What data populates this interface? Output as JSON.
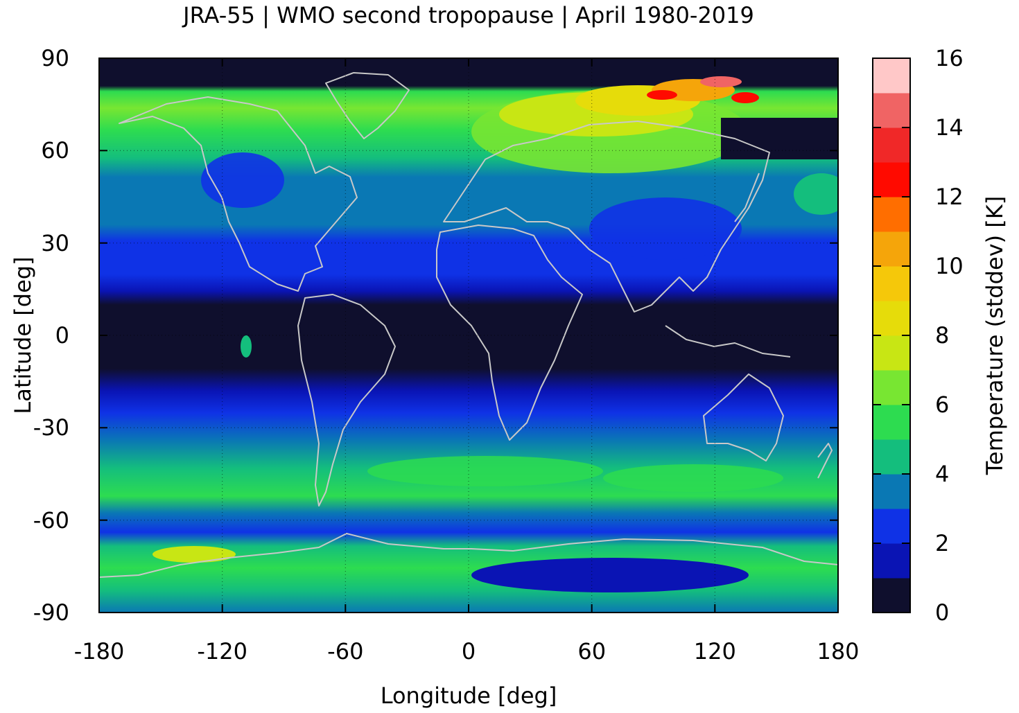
{
  "title": "JRA-55 | WMO second tropopause | April 1980-2019",
  "map": {
    "xlabel": "Longitude [deg]",
    "ylabel": "Latitude [deg]",
    "xlim": [
      -180,
      180
    ],
    "ylim": [
      -90,
      90
    ],
    "xticks": [
      "-180",
      "-120",
      "-60",
      "0",
      "60",
      "120",
      "180"
    ],
    "yticks": [
      "90",
      "60",
      "30",
      "0",
      "-30",
      "-60",
      "-90"
    ],
    "grid": true,
    "coastline_color": "#c8c8c8"
  },
  "colorbar": {
    "label": "Temperature (stddev) [K]",
    "ticks": [
      "0",
      "2",
      "4",
      "6",
      "8",
      "10",
      "12",
      "14",
      "16"
    ],
    "min": 0,
    "max": 16,
    "colors": [
      "#0f0f2d",
      "#0a14b4",
      "#0f32e6",
      "#0a78b4",
      "#14be7d",
      "#2ddc50",
      "#78e632",
      "#c8e614",
      "#e6dc0a",
      "#f5c80a",
      "#f5a50a",
      "#ff6e00",
      "#ff0a00",
      "#f02828",
      "#f06464",
      "#ffc8c8"
    ]
  },
  "chart_data": {
    "type": "heatmap",
    "title": "JRA-55 | WMO second tropopause | April 1980-2019",
    "xlabel": "Longitude [deg]",
    "ylabel": "Latitude [deg]",
    "xlim": [
      -180,
      180
    ],
    "ylim": [
      -90,
      90
    ],
    "colorbar_label": "Temperature (stddev) [K]",
    "colorbar_range": [
      0,
      16
    ],
    "zonal_bands": [
      {
        "lat_range": [
          80,
          90
        ],
        "value": 0.5
      },
      {
        "lat_range": [
          70,
          80
        ],
        "value": 6.5
      },
      {
        "lat_range": [
          55,
          70
        ],
        "value": 5.5
      },
      {
        "lat_range": [
          35,
          55
        ],
        "value": 3.5
      },
      {
        "lat_range": [
          20,
          35
        ],
        "value": 2.5
      },
      {
        "lat_range": [
          -20,
          20
        ],
        "value": 1.0
      },
      {
        "lat_range": [
          -35,
          -20
        ],
        "value": 2.5
      },
      {
        "lat_range": [
          -50,
          -35
        ],
        "value": 3.5
      },
      {
        "lat_range": [
          -60,
          -50
        ],
        "value": 5.0
      },
      {
        "lat_range": [
          -70,
          -60
        ],
        "value": 3.5
      },
      {
        "lat_range": [
          -85,
          -70
        ],
        "value": 5.5
      },
      {
        "lat_range": [
          -90,
          -85
        ],
        "value": 3.0
      }
    ],
    "maxima": [
      {
        "lon": 75,
        "lat": 80,
        "value": 9.5
      },
      {
        "lon": 110,
        "lat": 84,
        "value": 11.5
      },
      {
        "lon": 135,
        "lat": 80,
        "value": 12.5
      },
      {
        "lon": -130,
        "lat": -73,
        "value": 7.5
      }
    ]
  }
}
